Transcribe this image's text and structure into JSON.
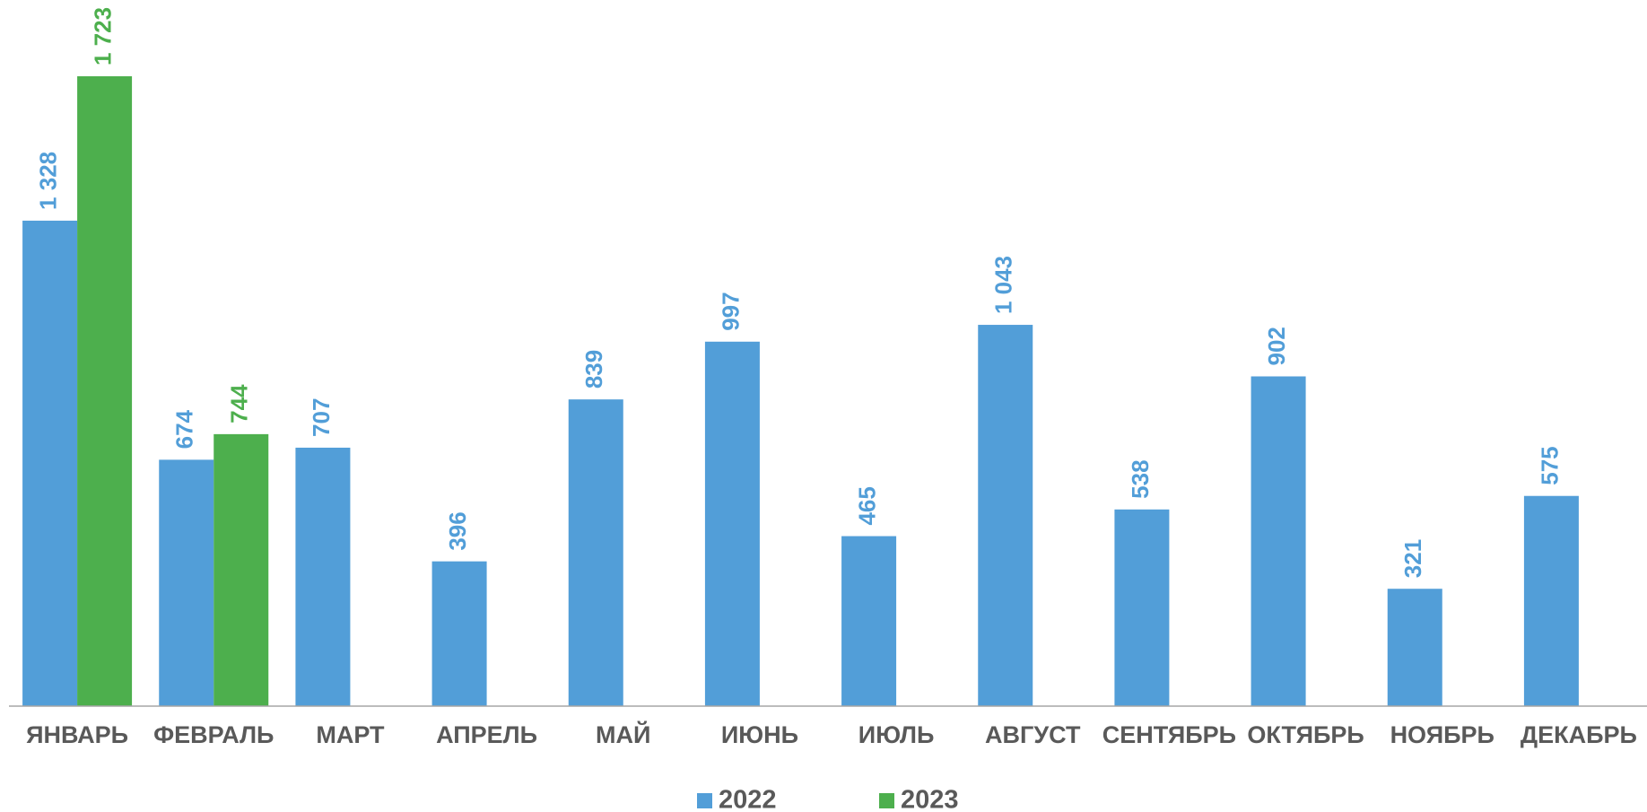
{
  "chart_data": {
    "type": "bar",
    "categories": [
      "ЯНВАРЬ",
      "ФЕВРАЛЬ",
      "МАРТ",
      "АПРЕЛЬ",
      "МАЙ",
      "ИЮНЬ",
      "ИЮЛЬ",
      "АВГУСТ",
      "СЕНТЯБРЬ",
      "ОКТЯБРЬ",
      "НОЯБРЬ",
      "ДЕКАБРЬ"
    ],
    "series": [
      {
        "name": "2022",
        "color": "#529ed8",
        "values": [
          1328,
          674,
          707,
          396,
          839,
          997,
          465,
          1043,
          538,
          902,
          321,
          575
        ],
        "value_labels": [
          "1 328",
          "674",
          "707",
          "396",
          "839",
          "997",
          "465",
          "1 043",
          "538",
          "902",
          "321",
          "575"
        ]
      },
      {
        "name": "2023",
        "color": "#4daf4d",
        "values": [
          1723,
          744,
          null,
          null,
          null,
          null,
          null,
          null,
          null,
          null,
          null,
          null
        ],
        "value_labels": [
          "1 723",
          "744",
          null,
          null,
          null,
          null,
          null,
          null,
          null,
          null,
          null,
          null
        ]
      }
    ],
    "legend": "bottom"
  }
}
